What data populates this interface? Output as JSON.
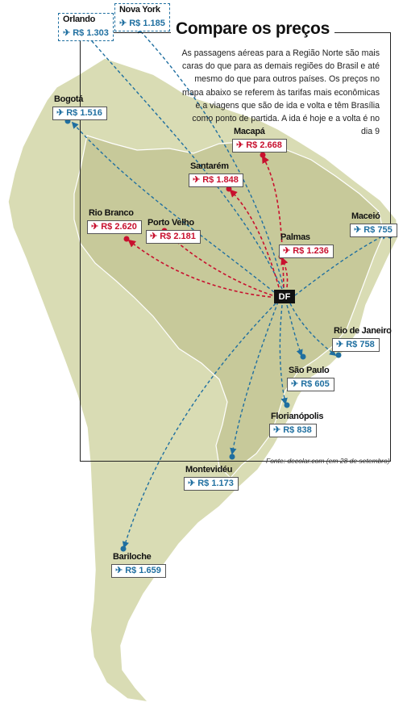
{
  "title": "Compare os preços",
  "intro": "As passagens aéreas para a Região Norte são mais caras do que para as demais regiões do Brasil e até mesmo do que para outros países. Os preços no mapa abaixo se referem às tarifas mais econômicas e a viagens que são de ida e volta e têm Brasília como ponto de partida. A ida é hoje e a volta é no dia 9",
  "source": "Fonte: decolar.com (em 28 de setembro)",
  "origin": "DF",
  "plane_icon": "airplane-icon",
  "colors": {
    "international": "#1f6fa0",
    "north_region": "#c8102e",
    "land": "#d9dcb4",
    "brazil": "#c7c99a"
  },
  "destinations": [
    {
      "city": "Orlando",
      "price": "R$ 1.303",
      "group": "international"
    },
    {
      "city": "Nova York",
      "price": "R$ 1.185",
      "group": "international"
    },
    {
      "city": "Bogotá",
      "price": "R$ 1.516",
      "group": "international"
    },
    {
      "city": "Macapá",
      "price": "R$ 2.668",
      "group": "north"
    },
    {
      "city": "Santarém",
      "price": "R$ 1.848",
      "group": "north"
    },
    {
      "city": "Rio Branco",
      "price": "R$ 2.620",
      "group": "north"
    },
    {
      "city": "Porto Velho",
      "price": "R$ 2.181",
      "group": "north"
    },
    {
      "city": "Palmas",
      "price": "R$ 1.236",
      "group": "north"
    },
    {
      "city": "Maceió",
      "price": "R$ 755",
      "group": "other"
    },
    {
      "city": "Rio de Janeiro",
      "price": "R$ 758",
      "group": "other"
    },
    {
      "city": "São Paulo",
      "price": "R$ 605",
      "group": "other"
    },
    {
      "city": "Florianópolis",
      "price": "R$ 838",
      "group": "other"
    },
    {
      "city": "Montevidéu",
      "price": "R$ 1.173",
      "group": "international"
    },
    {
      "city": "Bariloche",
      "price": "R$ 1.659",
      "group": "international"
    }
  ]
}
